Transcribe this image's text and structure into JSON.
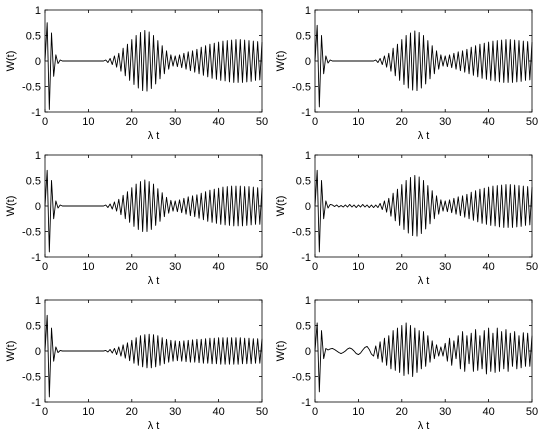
{
  "chart_data": [
    {
      "type": "line",
      "xlabel": "λ t",
      "ylabel": "W(t)",
      "color": "#000000",
      "xlim": [
        0,
        50
      ],
      "ylim": [
        -1,
        1
      ],
      "xticks": [
        0,
        10,
        20,
        30,
        40,
        50
      ],
      "yticks": [
        -1,
        -0.5,
        0,
        0.5,
        1
      ],
      "x": [
        0,
        0.5,
        1,
        1.5,
        2,
        2.5,
        3,
        3.5,
        4,
        4.5,
        5,
        5.5,
        6,
        6.5,
        7,
        7.5,
        8,
        8.5,
        9,
        9.5,
        10,
        10.5,
        11,
        11.5,
        12,
        12.5,
        13,
        13.5,
        14,
        14.5,
        15,
        15.5,
        16,
        16.5,
        17,
        17.5,
        18,
        18.5,
        19,
        19.5,
        20,
        20.5,
        21,
        21.5,
        22,
        22.5,
        23,
        23.5,
        24,
        24.5,
        25,
        25.5,
        26,
        26.5,
        27,
        27.5,
        28,
        28.5,
        29,
        29.5,
        30,
        30.5,
        31,
        31.5,
        32,
        32.5,
        33,
        33.5,
        34,
        34.5,
        35,
        35.5,
        36,
        36.5,
        37,
        37.5,
        38,
        38.5,
        39,
        39.5,
        40,
        40.5,
        41,
        41.5,
        42,
        42.5,
        43,
        43.5,
        44,
        44.5,
        45,
        45.5,
        46,
        46.5,
        47,
        47.5,
        48,
        48.5,
        49,
        49.5,
        50
      ],
      "values": [
        0,
        0.75,
        -0.95,
        0.55,
        -0.3,
        0.12,
        -0.05,
        0.02,
        0,
        0,
        0,
        0,
        0,
        0,
        0,
        0,
        0,
        0,
        0,
        0,
        0,
        0,
        0,
        0,
        0,
        0,
        0,
        0,
        0.02,
        -0.03,
        0.05,
        -0.07,
        0.1,
        -0.12,
        0.15,
        -0.2,
        0.25,
        -0.29,
        0.33,
        -0.38,
        0.42,
        -0.46,
        0.5,
        -0.53,
        0.56,
        -0.58,
        0.6,
        -0.59,
        0.57,
        -0.54,
        0.5,
        -0.45,
        0.4,
        -0.35,
        0.3,
        -0.25,
        0.2,
        -0.16,
        0.12,
        -0.1,
        0.1,
        -0.11,
        0.12,
        -0.13,
        0.15,
        -0.16,
        0.18,
        -0.19,
        0.2,
        -0.22,
        0.23,
        -0.25,
        0.27,
        -0.28,
        0.3,
        -0.31,
        0.33,
        -0.34,
        0.35,
        -0.36,
        0.37,
        -0.38,
        0.39,
        -0.39,
        0.4,
        -0.41,
        0.41,
        -0.42,
        0.42,
        -0.42,
        0.42,
        -0.42,
        0.41,
        -0.41,
        0.4,
        -0.4,
        0.39,
        -0.38,
        0.38,
        -0.37,
        0.37
      ]
    },
    {
      "type": "line",
      "xlabel": "λ t",
      "ylabel": "W(t)",
      "color": "#000000",
      "xlim": [
        0,
        50
      ],
      "ylim": [
        -1,
        1
      ],
      "xticks": [
        0,
        10,
        20,
        30,
        40,
        50
      ],
      "yticks": [
        -1,
        -0.5,
        0,
        0.5,
        1
      ],
      "x": [
        0,
        0.5,
        1,
        1.5,
        2,
        2.5,
        3,
        3.5,
        4,
        4.5,
        5,
        5.5,
        6,
        6.5,
        7,
        7.5,
        8,
        8.5,
        9,
        9.5,
        10,
        10.5,
        11,
        11.5,
        12,
        12.5,
        13,
        13.5,
        14,
        14.5,
        15,
        15.5,
        16,
        16.5,
        17,
        17.5,
        18,
        18.5,
        19,
        19.5,
        20,
        20.5,
        21,
        21.5,
        22,
        22.5,
        23,
        23.5,
        24,
        24.5,
        25,
        25.5,
        26,
        26.5,
        27,
        27.5,
        28,
        28.5,
        29,
        29.5,
        30,
        30.5,
        31,
        31.5,
        32,
        32.5,
        33,
        33.5,
        34,
        34.5,
        35,
        35.5,
        36,
        36.5,
        37,
        37.5,
        38,
        38.5,
        39,
        39.5,
        40,
        40.5,
        41,
        41.5,
        42,
        42.5,
        43,
        43.5,
        44,
        44.5,
        45,
        45.5,
        46,
        46.5,
        47,
        47.5,
        48,
        48.5,
        49,
        49.5,
        50
      ],
      "values": [
        0,
        0.7,
        -0.9,
        0.5,
        -0.25,
        0.1,
        -0.04,
        0.02,
        0,
        0,
        0,
        0,
        0,
        0,
        0,
        0,
        0,
        0,
        0,
        0,
        0,
        0,
        0,
        0,
        0,
        0,
        0,
        0,
        0.02,
        -0.03,
        0.05,
        -0.07,
        0.1,
        -0.12,
        0.15,
        -0.2,
        0.25,
        -0.29,
        0.33,
        -0.38,
        0.42,
        -0.46,
        0.5,
        -0.53,
        0.55,
        -0.57,
        0.59,
        -0.58,
        0.56,
        -0.53,
        0.5,
        -0.45,
        0.4,
        -0.35,
        0.3,
        -0.25,
        0.2,
        -0.16,
        0.12,
        -0.1,
        0.1,
        -0.11,
        0.12,
        -0.13,
        0.15,
        -0.16,
        0.18,
        -0.19,
        0.2,
        -0.22,
        0.23,
        -0.25,
        0.27,
        -0.28,
        0.3,
        -0.31,
        0.33,
        -0.34,
        0.35,
        -0.36,
        0.37,
        -0.38,
        0.39,
        -0.39,
        0.4,
        -0.41,
        0.41,
        -0.42,
        0.42,
        -0.42,
        0.42,
        -0.42,
        0.41,
        -0.41,
        0.4,
        -0.4,
        0.39,
        -0.38,
        0.38,
        -0.37,
        0.37
      ]
    },
    {
      "type": "line",
      "xlabel": "λ t",
      "ylabel": "W(t)",
      "color": "#000000",
      "xlim": [
        0,
        50
      ],
      "ylim": [
        -1,
        1
      ],
      "xticks": [
        0,
        10,
        20,
        30,
        40,
        50
      ],
      "yticks": [
        -1,
        -0.5,
        0,
        0.5,
        1
      ],
      "x": [
        0,
        0.5,
        1,
        1.5,
        2,
        2.5,
        3,
        3.5,
        4,
        4.5,
        5,
        5.5,
        6,
        6.5,
        7,
        7.5,
        8,
        8.5,
        9,
        9.5,
        10,
        10.5,
        11,
        11.5,
        12,
        12.5,
        13,
        13.5,
        14,
        14.5,
        15,
        15.5,
        16,
        16.5,
        17,
        17.5,
        18,
        18.5,
        19,
        19.5,
        20,
        20.5,
        21,
        21.5,
        22,
        22.5,
        23,
        23.5,
        24,
        24.5,
        25,
        25.5,
        26,
        26.5,
        27,
        27.5,
        28,
        28.5,
        29,
        29.5,
        30,
        30.5,
        31,
        31.5,
        32,
        32.5,
        33,
        33.5,
        34,
        34.5,
        35,
        35.5,
        36,
        36.5,
        37,
        37.5,
        38,
        38.5,
        39,
        39.5,
        40,
        40.5,
        41,
        41.5,
        42,
        42.5,
        43,
        43.5,
        44,
        44.5,
        45,
        45.5,
        46,
        46.5,
        47,
        47.5,
        48,
        48.5,
        49,
        49.5,
        50
      ],
      "values": [
        0,
        0.7,
        -0.9,
        0.5,
        -0.25,
        0.1,
        -0.04,
        0.02,
        0,
        0,
        0,
        0,
        0,
        0,
        0,
        0,
        0,
        0,
        0,
        0,
        0,
        0,
        0,
        0,
        0,
        0,
        0,
        0,
        0.02,
        -0.03,
        0.04,
        -0.06,
        0.08,
        -0.1,
        0.13,
        -0.17,
        0.21,
        -0.25,
        0.28,
        -0.32,
        0.36,
        -0.4,
        0.43,
        -0.46,
        0.48,
        -0.5,
        0.51,
        -0.5,
        0.48,
        -0.46,
        0.43,
        -0.38,
        0.34,
        -0.3,
        0.26,
        -0.21,
        0.17,
        -0.14,
        0.11,
        -0.1,
        0.1,
        -0.11,
        0.12,
        -0.13,
        0.15,
        -0.16,
        0.18,
        -0.19,
        0.2,
        -0.21,
        0.22,
        -0.24,
        0.25,
        -0.27,
        0.28,
        -0.3,
        0.31,
        -0.32,
        0.33,
        -0.34,
        0.35,
        -0.36,
        0.37,
        -0.37,
        0.38,
        -0.38,
        0.39,
        -0.39,
        0.39,
        -0.39,
        0.39,
        -0.39,
        0.38,
        -0.38,
        0.38,
        -0.37,
        0.37,
        -0.36,
        0.36,
        -0.36,
        0.35
      ]
    },
    {
      "type": "line",
      "xlabel": "λ t",
      "ylabel": "W(t)",
      "color": "#000000",
      "xlim": [
        0,
        50
      ],
      "ylim": [
        -1,
        1
      ],
      "xticks": [
        0,
        10,
        20,
        30,
        40,
        50
      ],
      "yticks": [
        -1,
        -0.5,
        0,
        0.5,
        1
      ],
      "x": [
        0,
        0.5,
        1,
        1.5,
        2,
        2.5,
        3,
        3.5,
        4,
        4.5,
        5,
        5.5,
        6,
        6.5,
        7,
        7.5,
        8,
        8.5,
        9,
        9.5,
        10,
        10.5,
        11,
        11.5,
        12,
        12.5,
        13,
        13.5,
        14,
        14.5,
        15,
        15.5,
        16,
        16.5,
        17,
        17.5,
        18,
        18.5,
        19,
        19.5,
        20,
        20.5,
        21,
        21.5,
        22,
        22.5,
        23,
        23.5,
        24,
        24.5,
        25,
        25.5,
        26,
        26.5,
        27,
        27.5,
        28,
        28.5,
        29,
        29.5,
        30,
        30.5,
        31,
        31.5,
        32,
        32.5,
        33,
        33.5,
        34,
        34.5,
        35,
        35.5,
        36,
        36.5,
        37,
        37.5,
        38,
        38.5,
        39,
        39.5,
        40,
        40.5,
        41,
        41.5,
        42,
        42.5,
        43,
        43.5,
        44,
        44.5,
        45,
        45.5,
        46,
        46.5,
        47,
        47.5,
        48,
        48.5,
        49,
        49.5,
        50
      ],
      "values": [
        0,
        0.7,
        -0.9,
        0.5,
        -0.25,
        0.1,
        -0.04,
        0.03,
        0.02,
        -0.01,
        0.02,
        -0.02,
        0.01,
        -0.02,
        0.02,
        -0.02,
        0.03,
        -0.02,
        0.02,
        -0.03,
        0.02,
        -0.02,
        0.03,
        -0.02,
        0.02,
        -0.03,
        0.02,
        -0.03,
        0.02,
        -0.03,
        0.05,
        -0.07,
        0.1,
        -0.12,
        0.15,
        -0.2,
        0.25,
        -0.29,
        0.33,
        -0.38,
        0.42,
        -0.46,
        0.5,
        -0.53,
        0.56,
        -0.58,
        0.6,
        -0.59,
        0.57,
        -0.54,
        0.5,
        -0.45,
        0.4,
        -0.35,
        0.3,
        -0.25,
        0.2,
        -0.16,
        0.12,
        -0.1,
        0.1,
        -0.11,
        0.12,
        -0.13,
        0.15,
        -0.16,
        0.18,
        -0.19,
        0.2,
        -0.22,
        0.23,
        -0.25,
        0.27,
        -0.28,
        0.3,
        -0.31,
        0.33,
        -0.34,
        0.35,
        -0.36,
        0.37,
        -0.38,
        0.39,
        -0.39,
        0.4,
        -0.41,
        0.41,
        -0.42,
        0.42,
        -0.42,
        0.42,
        -0.42,
        0.41,
        -0.41,
        0.4,
        -0.4,
        0.39,
        -0.38,
        0.38,
        -0.37,
        0.37
      ]
    },
    {
      "type": "line",
      "xlabel": "λ t",
      "ylabel": "W(t)",
      "color": "#000000",
      "xlim": [
        0,
        50
      ],
      "ylim": [
        -1,
        1
      ],
      "xticks": [
        0,
        10,
        20,
        30,
        40,
        50
      ],
      "yticks": [
        -1,
        -0.5,
        0,
        0.5,
        1
      ],
      "x": [
        0,
        0.5,
        1,
        1.5,
        2,
        2.5,
        3,
        3.5,
        4,
        4.5,
        5,
        5.5,
        6,
        6.5,
        7,
        7.5,
        8,
        8.5,
        9,
        9.5,
        10,
        10.5,
        11,
        11.5,
        12,
        12.5,
        13,
        13.5,
        14,
        14.5,
        15,
        15.5,
        16,
        16.5,
        17,
        17.5,
        18,
        18.5,
        19,
        19.5,
        20,
        20.5,
        21,
        21.5,
        22,
        22.5,
        23,
        23.5,
        24,
        24.5,
        25,
        25.5,
        26,
        26.5,
        27,
        27.5,
        28,
        28.5,
        29,
        29.5,
        30,
        30.5,
        31,
        31.5,
        32,
        32.5,
        33,
        33.5,
        34,
        34.5,
        35,
        35.5,
        36,
        36.5,
        37,
        37.5,
        38,
        38.5,
        39,
        39.5,
        40,
        40.5,
        41,
        41.5,
        42,
        42.5,
        43,
        43.5,
        44,
        44.5,
        45,
        45.5,
        46,
        46.5,
        47,
        47.5,
        48,
        48.5,
        49,
        49.5,
        50
      ],
      "values": [
        0,
        0.7,
        -0.9,
        0.45,
        -0.2,
        0.08,
        -0.03,
        0.01,
        0,
        0,
        0,
        0,
        0,
        0,
        0,
        0,
        0,
        0,
        0,
        0,
        0,
        0,
        0,
        0,
        0,
        0,
        0,
        0,
        0.01,
        -0.02,
        0.03,
        -0.04,
        0.05,
        -0.07,
        0.08,
        -0.1,
        0.12,
        -0.14,
        0.16,
        -0.19,
        0.21,
        -0.24,
        0.26,
        -0.28,
        0.3,
        -0.31,
        0.32,
        -0.33,
        0.33,
        -0.33,
        0.32,
        -0.31,
        0.3,
        -0.28,
        0.26,
        -0.25,
        0.23,
        -0.22,
        0.21,
        -0.2,
        0.2,
        -0.19,
        0.19,
        -0.2,
        0.2,
        -0.21,
        0.21,
        -0.22,
        0.22,
        -0.22,
        0.23,
        -0.23,
        0.23,
        -0.24,
        0.24,
        -0.24,
        0.25,
        -0.25,
        0.25,
        -0.25,
        0.26,
        -0.26,
        0.26,
        -0.26,
        0.26,
        -0.26,
        0.26,
        -0.26,
        0.26,
        -0.26,
        0.26,
        -0.25,
        0.25,
        -0.25,
        0.25,
        -0.25,
        0.24,
        -0.24,
        0.24,
        -0.24,
        0.24
      ]
    },
    {
      "type": "line",
      "xlabel": "λ t",
      "ylabel": "W(t)",
      "color": "#000000",
      "xlim": [
        0,
        50
      ],
      "ylim": [
        -1,
        1
      ],
      "xticks": [
        0,
        10,
        20,
        30,
        40,
        50
      ],
      "yticks": [
        -1,
        -0.5,
        0,
        0.5,
        1
      ],
      "x": [
        0,
        0.5,
        1,
        1.5,
        2,
        2.5,
        3,
        3.5,
        4,
        4.5,
        5,
        5.5,
        6,
        6.5,
        7,
        7.5,
        8,
        8.5,
        9,
        9.5,
        10,
        10.5,
        11,
        11.5,
        12,
        12.5,
        13,
        13.5,
        14,
        14.5,
        15,
        15.5,
        16,
        16.5,
        17,
        17.5,
        18,
        18.5,
        19,
        19.5,
        20,
        20.5,
        21,
        21.5,
        22,
        22.5,
        23,
        23.5,
        24,
        24.5,
        25,
        25.5,
        26,
        26.5,
        27,
        27.5,
        28,
        28.5,
        29,
        29.5,
        30,
        30.5,
        31,
        31.5,
        32,
        32.5,
        33,
        33.5,
        34,
        34.5,
        35,
        35.5,
        36,
        36.5,
        37,
        37.5,
        38,
        38.5,
        39,
        39.5,
        40,
        40.5,
        41,
        41.5,
        42,
        42.5,
        43,
        43.5,
        44,
        44.5,
        45,
        45.5,
        46,
        46.5,
        47,
        47.5,
        48,
        48.5,
        49,
        49.5,
        50
      ],
      "values": [
        0,
        0.55,
        -0.8,
        0.4,
        -0.15,
        0.05,
        0.02,
        0.04,
        0.05,
        0.03,
        0,
        -0.03,
        -0.05,
        -0.03,
        0,
        0.04,
        0.06,
        0.04,
        0,
        -0.05,
        -0.07,
        -0.04,
        0.02,
        0.07,
        0.09,
        0.03,
        -0.06,
        -0.1,
        0.1,
        -0.15,
        0.18,
        -0.22,
        0.25,
        -0.28,
        0.3,
        -0.35,
        0.4,
        -0.38,
        0.45,
        -0.42,
        0.5,
        -0.48,
        0.55,
        -0.45,
        0.5,
        -0.5,
        0.45,
        -0.42,
        0.4,
        -0.35,
        0.38,
        -0.3,
        0.3,
        -0.22,
        0.2,
        -0.15,
        0.12,
        -0.1,
        0.08,
        -0.1,
        0.15,
        -0.2,
        0.25,
        -0.28,
        0.2,
        -0.15,
        0.3,
        -0.35,
        0.38,
        -0.4,
        0.3,
        -0.25,
        0.35,
        -0.4,
        0.42,
        -0.38,
        0.3,
        -0.35,
        0.4,
        -0.45,
        0.45,
        -0.4,
        0.35,
        -0.42,
        0.45,
        -0.4,
        0.38,
        -0.35,
        0.42,
        -0.4,
        0.35,
        -0.3,
        0.38,
        -0.35,
        0.3,
        -0.33,
        0.36,
        -0.3,
        0.35,
        -0.3,
        0.3
      ]
    }
  ]
}
